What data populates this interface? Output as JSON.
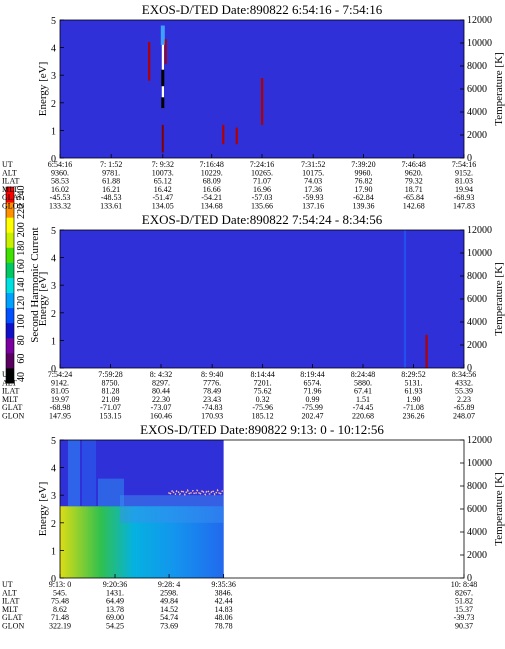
{
  "colorbar": {
    "label": "Second Harmonic Current",
    "ticks": [
      "40",
      "60",
      "80",
      "100",
      "120",
      "140",
      "160",
      "180",
      "200",
      "220",
      "240"
    ],
    "colors": [
      "#000000",
      "#5a0060",
      "#7a00a0",
      "#1010c8",
      "#0050ff",
      "#00a0ff",
      "#00e0e0",
      "#00c864",
      "#40e000",
      "#c8f000",
      "#ffff00",
      "#ff9000",
      "#ff0000"
    ]
  },
  "chart_data": [
    {
      "type": "heatmap",
      "title": "EXOS-D/TED   Date:890822  6:54:16 - 7:54:16",
      "ylabel": "Energy [eV]",
      "y2label": "Temperature [K]",
      "ylim": [
        0,
        5
      ],
      "y2lim": [
        0,
        12000
      ],
      "yticks": [
        "0",
        "1",
        "2",
        "3",
        "4",
        "5"
      ],
      "y2ticks": [
        "0",
        "2000",
        "4000",
        "6000",
        "8000",
        "10000",
        "12000"
      ],
      "background": "#3030d8",
      "table": {
        "row_labels": [
          "UT",
          "ALT",
          "ILAT",
          "MLT",
          "GLAT",
          "GLON"
        ],
        "columns": [
          [
            "6:54:16",
            "9360.",
            "58.53",
            "16.02",
            "-45.53",
            "133.32"
          ],
          [
            "7: 1:52",
            "9781.",
            "61.88",
            "16.21",
            "-48.53",
            "133.61"
          ],
          [
            "7: 9:32",
            "10073.",
            "65.12",
            "16.42",
            "-51.47",
            "134.05"
          ],
          [
            "7:16:48",
            "10229.",
            "68.09",
            "16.66",
            "-54.21",
            "134.68"
          ],
          [
            "7:24:16",
            "10265.",
            "71.07",
            "16.96",
            "-57.03",
            "135.66"
          ],
          [
            "7:31:52",
            "10175.",
            "74.03",
            "17.36",
            "-59.93",
            "137.16"
          ],
          [
            "7:39:20",
            "9960.",
            "76.82",
            "17.90",
            "-62.84",
            "139.36"
          ],
          [
            "7:46:48",
            "9620.",
            "79.32",
            "18.71",
            "-65.84",
            "142.68"
          ],
          [
            "7:54:16",
            "9152.",
            "81.03",
            "19.94",
            "-68.93",
            "147.83"
          ]
        ]
      },
      "features": [
        {
          "x_ut": "7:09:32",
          "energy": [
            1.8,
            4.5
          ],
          "color": "#ffffff"
        },
        {
          "x_ut": "7:07:30",
          "energy": [
            2.8,
            4.2
          ],
          "color": "#b00000"
        },
        {
          "x_ut": "7:18:30",
          "energy": [
            0.5,
            1.2
          ],
          "color": "#b00000"
        },
        {
          "x_ut": "7:20:30",
          "energy": [
            0.5,
            1.1
          ],
          "color": "#b00000"
        },
        {
          "x_ut": "7:24:16",
          "energy": [
            1.2,
            2.9
          ],
          "color": "#b00000"
        }
      ]
    },
    {
      "type": "heatmap",
      "title": "EXOS-D/TED   Date:890822  7:54:24 - 8:34:56",
      "ylabel": "Energy [eV]",
      "y2label": "Temperature [K]",
      "ylim": [
        0,
        5
      ],
      "y2lim": [
        0,
        12000
      ],
      "yticks": [
        "0",
        "1",
        "2",
        "3",
        "4",
        "5"
      ],
      "y2ticks": [
        "0",
        "2000",
        "4000",
        "6000",
        "8000",
        "10000",
        "12000"
      ],
      "background": "#3030d8",
      "table": {
        "row_labels": [
          "UT",
          "ALT",
          "ILAT",
          "MLT",
          "GLAT",
          "GLON"
        ],
        "columns": [
          [
            "7:54:24",
            "9142.",
            "81.05",
            "19.97",
            "-68.98",
            "147.95"
          ],
          [
            "7:59:28",
            "8750.",
            "81.28",
            "21.09",
            "-71.07",
            "153.15"
          ],
          [
            "8: 4:32",
            "8297.",
            "80.44",
            "22.30",
            "-73.07",
            "160.46"
          ],
          [
            "8: 9:40",
            "7776.",
            "78.49",
            "23.43",
            "-74.83",
            "170.93"
          ],
          [
            "8:14:44",
            "7201.",
            "75.62",
            "0.32",
            "-75.96",
            "185.12"
          ],
          [
            "8:19:44",
            "6574.",
            "71.96",
            "0.99",
            "-75.99",
            "202.47"
          ],
          [
            "8:24:48",
            "5880.",
            "67.41",
            "1.51",
            "-74.45",
            "220.68"
          ],
          [
            "8:29:52",
            "5131.",
            "61.93",
            "1.90",
            "-71.08",
            "236.26"
          ],
          [
            "8:34:56",
            "4332.",
            "55.39",
            "2.23",
            "-65.89",
            "248.07"
          ]
        ]
      },
      "features": [
        {
          "x_ut": "8:29:00",
          "energy": [
            0.0,
            5.0
          ],
          "color": "#2050f0"
        },
        {
          "x_ut": "8:31:10",
          "energy": [
            0.0,
            1.2
          ],
          "color": "#b00000"
        }
      ]
    },
    {
      "type": "heatmap",
      "title": "EXOS-D/TED   Date:890822  9:13: 0 - 10:12:56",
      "ylabel": "Energy [eV]",
      "y2label": "Temperature [K]",
      "ylim": [
        0,
        5
      ],
      "y2lim": [
        0,
        12000
      ],
      "yticks": [
        "0",
        "1",
        "2",
        "3",
        "4",
        "5"
      ],
      "y2ticks": [
        "0",
        "2000",
        "4000",
        "6000",
        "8000",
        "10000",
        "12000"
      ],
      "background": "#3030d8",
      "data_gap": [
        "9:35:36",
        "10:08:48"
      ],
      "table": {
        "row_labels": [
          "UT",
          "ALT",
          "ILAT",
          "MLT",
          "GLAT",
          "GLON"
        ],
        "columns": [
          [
            "9:13: 0",
            "545.",
            "75.48",
            "8.62",
            "71.48",
            "322.19"
          ],
          [
            "9:20:36",
            "1431.",
            "64.49",
            "13.78",
            "69.00",
            "54.25"
          ],
          [
            "9:28: 4",
            "2598.",
            "49.84",
            "14.52",
            "54.74",
            "73.69"
          ],
          [
            "9:35:36",
            "3846.",
            "42.44",
            "14.83",
            "48.06",
            "78.78"
          ],
          [
            "10: 8:48",
            "8267.",
            "51.82",
            "15.37",
            "-39.73",
            "90.37"
          ]
        ]
      },
      "trace": {
        "energy": 3.1,
        "x_range": [
          "9:28:00",
          "9:35:30"
        ],
        "color": "#ffc0a0"
      }
    }
  ]
}
